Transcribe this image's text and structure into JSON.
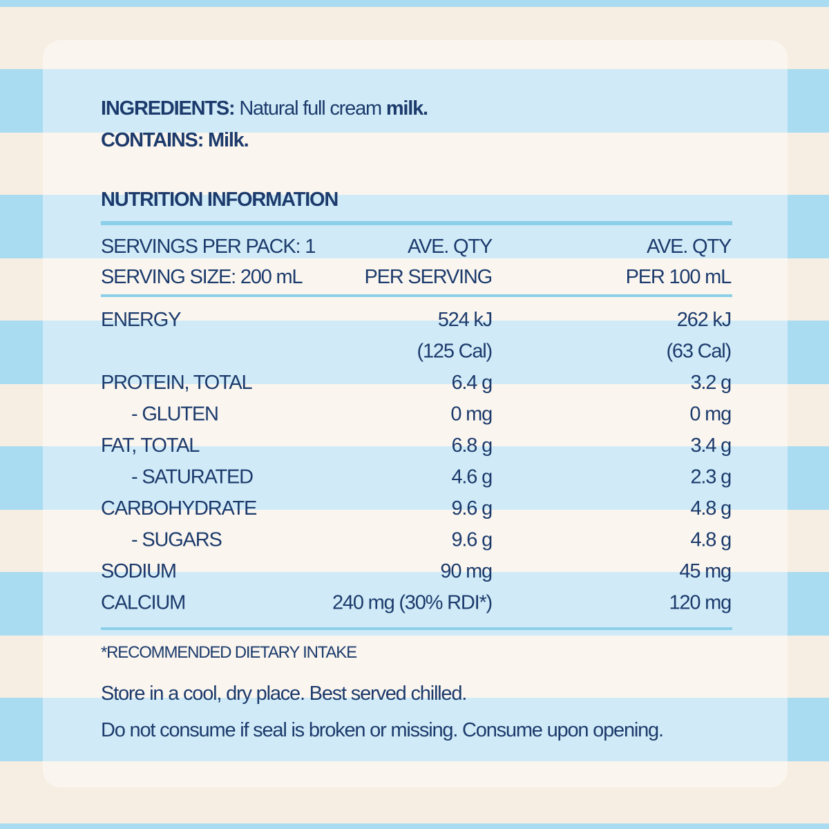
{
  "ingredients": {
    "label": "INGREDIENTS:",
    "text": "Natural full cream",
    "bold": "milk."
  },
  "contains": {
    "label": "CONTAINS:",
    "value": "Milk."
  },
  "nutrition": {
    "title": "NUTRITION INFORMATION",
    "servings_per_pack": "SERVINGS PER PACK: 1",
    "serving_size": "SERVING SIZE: 200 mL",
    "per_serving_header": [
      "AVE. QTY",
      "PER SERVING"
    ],
    "per_100ml_header": [
      "AVE. QTY",
      "PER 100 mL"
    ],
    "rows": [
      {
        "name": "ENERGY",
        "per_serving": [
          "524 kJ",
          "(125 Cal)"
        ],
        "per_100ml": [
          "262 kJ",
          "(63 Cal)"
        ]
      },
      {
        "name": "PROTEIN, TOTAL",
        "per_serving": [
          "6.4 g"
        ],
        "per_100ml": [
          "3.2 g"
        ]
      },
      {
        "name": "- GLUTEN",
        "sub": true,
        "per_serving": [
          "0 mg"
        ],
        "per_100ml": [
          "0 mg"
        ]
      },
      {
        "name": "FAT, TOTAL",
        "per_serving": [
          "6.8 g"
        ],
        "per_100ml": [
          "3.4 g"
        ]
      },
      {
        "name": "- SATURATED",
        "sub": true,
        "per_serving": [
          "4.6 g"
        ],
        "per_100ml": [
          "2.3 g"
        ]
      },
      {
        "name": "CARBOHYDRATE",
        "per_serving": [
          "9.6 g"
        ],
        "per_100ml": [
          "4.8 g"
        ]
      },
      {
        "name": "- SUGARS",
        "sub": true,
        "per_serving": [
          "9.6 g"
        ],
        "per_100ml": [
          "4.8 g"
        ]
      },
      {
        "name": "SODIUM",
        "per_serving": [
          "90 mg"
        ],
        "per_100ml": [
          "45 mg"
        ]
      },
      {
        "name": "CALCIUM",
        "per_serving": [
          "240 mg (30% RDI*)"
        ],
        "per_100ml": [
          "120 mg"
        ]
      }
    ],
    "footnote": "*RECOMMENDED DIETARY INTAKE"
  },
  "storage": [
    "Store in a cool, dry place. Best served chilled.",
    "Do not consume if seal is broken or missing. Consume upon opening."
  ]
}
